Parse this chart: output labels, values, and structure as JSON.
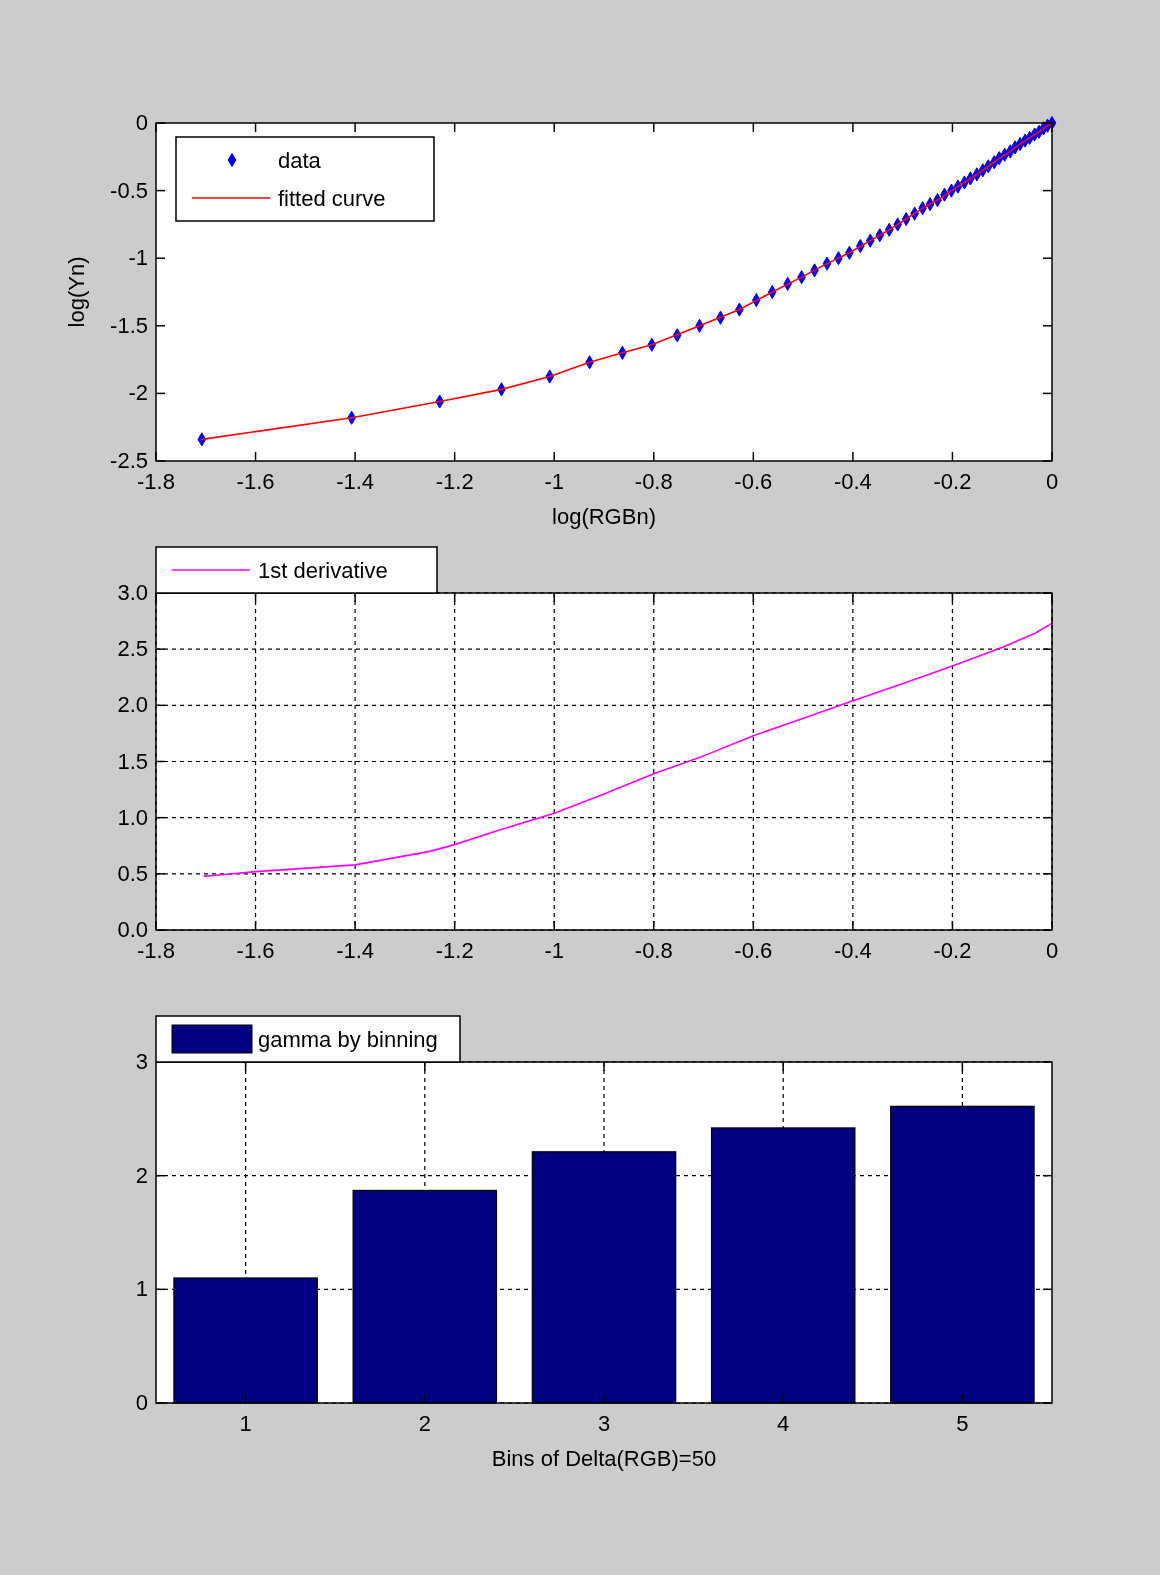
{
  "chart_data": [
    {
      "type": "scatter",
      "xlabel": "log(RGBn)",
      "ylabel": "log(Yn)",
      "xlim": [
        -1.8,
        0
      ],
      "ylim": [
        -2.5,
        0
      ],
      "xticks": [
        -1.8,
        -1.6,
        -1.4,
        -1.2,
        -1,
        -0.8,
        -0.6,
        -0.4,
        -0.2,
        0
      ],
      "yticks": [
        -2.5,
        -2,
        -1.5,
        -1,
        -0.5,
        0
      ],
      "grid": false,
      "legend": "top left",
      "series": [
        {
          "name": "data",
          "marker": "diamond",
          "color": "#0000ff",
          "x": [
            -1.708,
            -1.407,
            -1.23,
            -1.106,
            -1.009,
            -0.929,
            -0.863,
            -0.804,
            -0.753,
            -0.708,
            -0.666,
            -0.628,
            -0.594,
            -0.562,
            -0.531,
            -0.503,
            -0.477,
            -0.452,
            -0.429,
            -0.407,
            -0.385,
            -0.365,
            -0.346,
            -0.327,
            -0.31,
            -0.293,
            -0.276,
            -0.26,
            -0.245,
            -0.23,
            -0.216,
            -0.202,
            -0.189,
            -0.176,
            -0.164,
            -0.151,
            -0.139,
            -0.128,
            -0.116,
            -0.106,
            -0.095,
            -0.084,
            -0.074,
            -0.064,
            -0.054,
            -0.045,
            -0.035,
            -0.026,
            -0.017,
            -0.009,
            0
          ],
          "values": [
            -2.34,
            -2.18,
            -2.06,
            -1.97,
            -1.875,
            -1.77,
            -1.7,
            -1.64,
            -1.57,
            -1.5,
            -1.44,
            -1.38,
            -1.31,
            -1.25,
            -1.19,
            -1.14,
            -1.09,
            -1.04,
            -1.0,
            -0.96,
            -0.91,
            -0.87,
            -0.83,
            -0.79,
            -0.75,
            -0.71,
            -0.67,
            -0.63,
            -0.6,
            -0.57,
            -0.53,
            -0.5,
            -0.47,
            -0.44,
            -0.41,
            -0.38,
            -0.35,
            -0.32,
            -0.29,
            -0.26,
            -0.235,
            -0.21,
            -0.18,
            -0.155,
            -0.13,
            -0.11,
            -0.085,
            -0.065,
            -0.04,
            -0.02,
            0
          ]
        },
        {
          "name": "fitted curve",
          "type": "line",
          "marker": "none",
          "color": "#ff0000",
          "x": [
            -1.708,
            -1.407,
            -1.23,
            -1.106,
            -1.009,
            -0.929,
            -0.863,
            -0.804,
            -0.708,
            -0.628,
            -0.562,
            -0.503,
            -0.452,
            -0.407,
            -0.365,
            -0.327,
            -0.293,
            -0.26,
            -0.23,
            -0.202,
            -0.176,
            -0.151,
            -0.128,
            -0.106,
            -0.084,
            -0.064,
            -0.045,
            -0.026,
            -0.009,
            0
          ],
          "values": [
            -2.34,
            -2.18,
            -2.06,
            -1.97,
            -1.875,
            -1.77,
            -1.7,
            -1.64,
            -1.5,
            -1.38,
            -1.25,
            -1.14,
            -1.04,
            -0.96,
            -0.87,
            -0.79,
            -0.71,
            -0.63,
            -0.57,
            -0.5,
            -0.44,
            -0.38,
            -0.32,
            -0.26,
            -0.21,
            -0.155,
            -0.11,
            -0.065,
            -0.02,
            0
          ]
        }
      ]
    },
    {
      "type": "line",
      "xlim": [
        -1.8,
        0
      ],
      "ylim": [
        0,
        3
      ],
      "xticks": [
        -1.8,
        -1.6,
        -1.4,
        -1.2,
        -1,
        -0.8,
        -0.6,
        -0.4,
        -0.2,
        0
      ],
      "yticks": [
        {
          "value": 0,
          "label": "0.0"
        },
        {
          "value": 0.5,
          "label": "0.5"
        },
        {
          "value": 1,
          "label": "1.0"
        },
        {
          "value": 1.5,
          "label": "1.5"
        },
        {
          "value": 2,
          "label": "2.0"
        },
        {
          "value": 2.5,
          "label": "2.5"
        },
        {
          "value": 3,
          "label": "3.0"
        }
      ],
      "grid": true,
      "legend": "top",
      "marker": "none",
      "series": [
        {
          "name": "1st derivative",
          "color": "#ff00ff",
          "x": [
            -1.703,
            -1.674,
            -1.6,
            -1.4,
            -1.25,
            -1.2,
            -1.11,
            -1.0,
            -0.9,
            -0.8,
            -0.7,
            -0.6,
            -0.515,
            -0.4,
            -0.295,
            -0.2,
            -0.098,
            -0.035,
            0
          ],
          "values": [
            0.48,
            0.49,
            0.52,
            0.58,
            0.7,
            0.76,
            0.89,
            1.04,
            1.21,
            1.39,
            1.55,
            1.73,
            1.86,
            2.04,
            2.2,
            2.35,
            2.52,
            2.64,
            2.73
          ]
        }
      ]
    },
    {
      "type": "bar",
      "xlabel": "Bins of Delta(RGB)=50",
      "categories": [
        "1",
        "2",
        "3",
        "4",
        "5"
      ],
      "ylim": [
        0,
        3
      ],
      "yticks": [
        0,
        1,
        2,
        3
      ],
      "grid": true,
      "legend": "top",
      "series": [
        {
          "name": "gamma by binning",
          "color": "#000080",
          "values": [
            1.1,
            1.87,
            2.21,
            2.42,
            2.61
          ]
        }
      ]
    }
  ]
}
